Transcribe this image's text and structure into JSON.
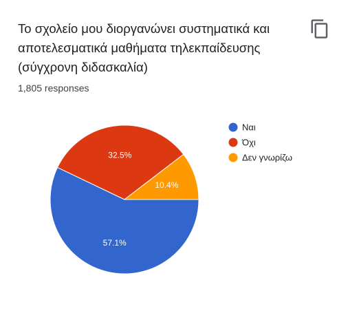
{
  "header": {
    "title": "Το σχολείο μου διοργανώνει συστηματικά και αποτελεσματικά μαθήματα τηλεκπαίδευσης (σύγχρονη διδασκαλία)",
    "responses": "1,805 responses",
    "copy_icon": "copy-icon"
  },
  "chart_data": {
    "type": "pie",
    "title": "",
    "slices": [
      {
        "label": "Ναι",
        "value": 57.1,
        "label_text": "57.1%",
        "color": "#3366cc"
      },
      {
        "label": "Όχι",
        "value": 32.5,
        "label_text": "32.5%",
        "color": "#dc3912"
      },
      {
        "label": "Δεν γνωρίζω",
        "value": 10.4,
        "label_text": "10.4%",
        "color": "#ff9900"
      }
    ],
    "legend_position": "right"
  }
}
